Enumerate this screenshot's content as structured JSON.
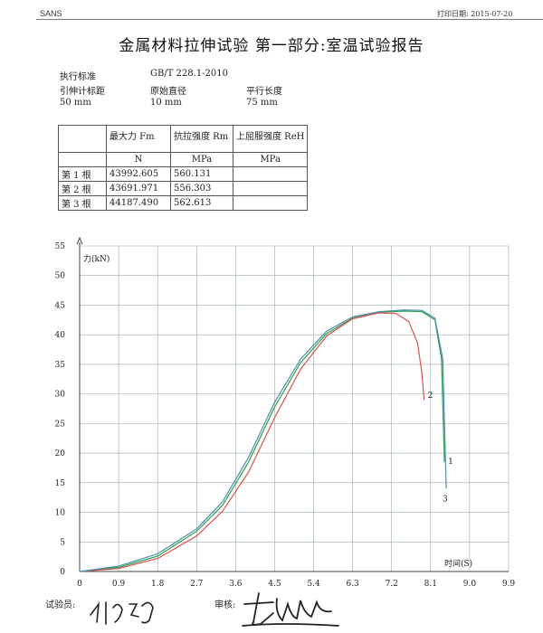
{
  "header": {
    "left": "SANS",
    "right": "打印日期: 2015-07-20"
  },
  "title": "金属材料拉伸试验 第一部分:室温试验报告",
  "meta": {
    "standard_label": "执行标准",
    "standard_value": "GB/T 228.1-2010",
    "gauge_label": "引伸计标距",
    "gauge_value": "50 mm",
    "diameter_label": "原始直径",
    "diameter_value": "10 mm",
    "parallel_label": "平行长度",
    "parallel_value": "75 mm"
  },
  "results_table": {
    "headers": [
      "",
      "最大力 Fm",
      "抗拉强度 Rm",
      "上屈服强度 ReH"
    ],
    "units": [
      "",
      "N",
      "MPa",
      "MPa"
    ],
    "rows": [
      [
        "第 1 根",
        "43992.605",
        "560.131",
        ""
      ],
      [
        "第 2 根",
        "43691.971",
        "556.303",
        ""
      ],
      [
        "第 3 根",
        "44187.490",
        "562.613",
        ""
      ]
    ]
  },
  "chart_data": {
    "type": "line",
    "ylabel": "力(kN)",
    "xlabel": "时间(S)",
    "ylim": [
      0,
      55
    ],
    "xlim": [
      0,
      9.9
    ],
    "yticks": [
      "0",
      "5",
      "10",
      "15",
      "20",
      "25",
      "30",
      "35",
      "40",
      "45",
      "50",
      "55"
    ],
    "xticks": [
      "0",
      "0.9",
      "1.8",
      "2.7",
      "3.6",
      "4.5",
      "5.4",
      "6.3",
      "7.2",
      "8.1",
      "9.0",
      "9.9"
    ],
    "grid": true,
    "series": [
      {
        "name": "1",
        "color": "#2e9e4e",
        "x": [
          0,
          0.9,
          1.8,
          2.7,
          3.3,
          3.9,
          4.5,
          5.1,
          5.7,
          6.3,
          6.9,
          7.5,
          7.9,
          8.2,
          8.35,
          8.42
        ],
        "y": [
          0,
          0.7,
          2.6,
          6.8,
          11.2,
          18.5,
          27.8,
          35.3,
          40.2,
          42.8,
          43.8,
          44.0,
          43.9,
          42.5,
          36.0,
          18.5
        ]
      },
      {
        "name": "2",
        "color": "#d9534f",
        "x": [
          0,
          0.9,
          1.8,
          2.7,
          3.3,
          3.9,
          4.5,
          5.1,
          5.7,
          6.3,
          6.9,
          7.3,
          7.6,
          7.8,
          7.9,
          7.95
        ],
        "y": [
          0,
          0.5,
          2.2,
          6.0,
          10.2,
          16.8,
          26.0,
          34.2,
          39.8,
          42.7,
          43.7,
          43.6,
          42.2,
          38.5,
          33.5,
          29.0
        ]
      },
      {
        "name": "3",
        "color": "#4f8fb0",
        "x": [
          0,
          0.9,
          1.8,
          2.7,
          3.3,
          3.9,
          4.5,
          5.1,
          5.7,
          6.3,
          6.9,
          7.5,
          7.9,
          8.2,
          8.38,
          8.46
        ],
        "y": [
          0,
          0.9,
          3.0,
          7.2,
          11.8,
          19.3,
          28.6,
          35.9,
          40.6,
          43.0,
          43.9,
          44.2,
          44.1,
          42.8,
          36.0,
          14.0
        ]
      }
    ]
  },
  "footer": {
    "tester_label": "试验员:",
    "reviewer_label": "审核:"
  }
}
